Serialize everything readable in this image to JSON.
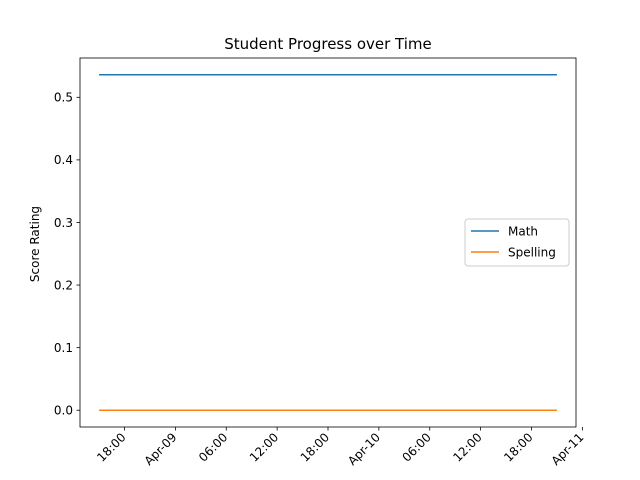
{
  "chart_data": {
    "type": "line",
    "title": "Student Progress over Time",
    "xlabel": "",
    "ylabel": "Score Rating",
    "x": [
      "2024-04-08 15:00",
      "2024-04-10 21:00"
    ],
    "x_display": "datetime",
    "xlim": [
      "2024-04-08 12:45",
      "2024-04-10 23:15"
    ],
    "ylim": [
      -0.0268,
      0.5628
    ],
    "xticks": [
      {
        "t": "2024-04-08 18:00",
        "label": "18:00"
      },
      {
        "t": "2024-04-09 00:00",
        "label": "Apr-09"
      },
      {
        "t": "2024-04-09 06:00",
        "label": "06:00"
      },
      {
        "t": "2024-04-09 12:00",
        "label": "12:00"
      },
      {
        "t": "2024-04-09 18:00",
        "label": "18:00"
      },
      {
        "t": "2024-04-10 00:00",
        "label": "Apr-10"
      },
      {
        "t": "2024-04-10 06:00",
        "label": "06:00"
      },
      {
        "t": "2024-04-10 12:00",
        "label": "12:00"
      },
      {
        "t": "2024-04-10 18:00",
        "label": "18:00"
      },
      {
        "t": "2024-04-11 00:00",
        "label": "Apr-11"
      }
    ],
    "yticks": [
      0.0,
      0.1,
      0.2,
      0.3,
      0.4,
      0.5
    ],
    "ytick_labels": [
      "0.0",
      "0.1",
      "0.2",
      "0.3",
      "0.4",
      "0.5"
    ],
    "grid": false,
    "legend_position": "center-right",
    "series": [
      {
        "name": "Math",
        "color": "#1f77b4",
        "values": [
          0.536,
          0.536
        ]
      },
      {
        "name": "Spelling",
        "color": "#ff7f0e",
        "values": [
          0.0,
          0.0
        ]
      }
    ]
  }
}
